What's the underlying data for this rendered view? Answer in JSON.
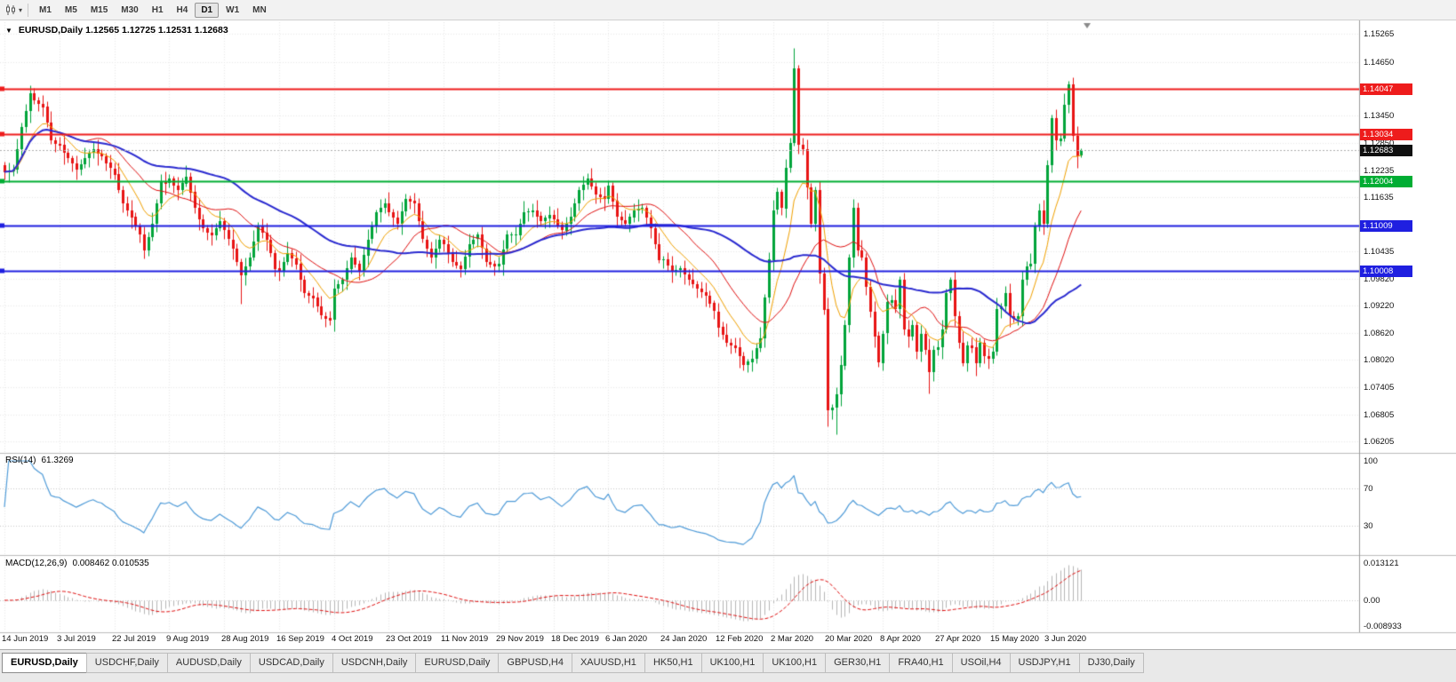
{
  "toolbar": {
    "periods": [
      "M1",
      "M5",
      "M15",
      "M30",
      "H1",
      "H4",
      "D1",
      "W1",
      "MN"
    ],
    "active_period": "D1"
  },
  "chart": {
    "title_arrow": "▼",
    "symbol_title": "EURUSD,Daily",
    "ohlc_text": "1.12565 1.12725 1.12531 1.12683"
  },
  "rsi_panel": {
    "label": "RSI(14)",
    "value": "61.3269"
  },
  "macd_panel": {
    "label": "MACD(12,26,9)",
    "values": "0.008462 0.010535"
  },
  "tabs": {
    "active_index": 0,
    "items": [
      "EURUSD,Daily",
      "USDCHF,Daily",
      "AUDUSD,Daily",
      "USDCAD,Daily",
      "USDCNH,Daily",
      "EURUSD,Daily",
      "GBPUSD,H4",
      "XAUUSD,H1",
      "HK50,H1",
      "UK100,H1",
      "UK100,H1",
      "GER30,H1",
      "FRA40,H1",
      "USOil,H4",
      "USDJPY,H1",
      "DJ30,Daily"
    ]
  },
  "chart_data": {
    "type": "candlestick",
    "symbol": "EURUSD",
    "timeframe": "Daily",
    "ohlc_current": {
      "open": 1.12565,
      "high": 1.12725,
      "low": 1.12531,
      "close": 1.12683
    },
    "first_open": 1.1235,
    "closes": [
      1.122,
      1.1222,
      1.1225,
      1.127,
      1.132,
      1.1355,
      1.1395,
      1.138,
      1.1372,
      1.1365,
      1.133,
      1.129,
      1.1283,
      1.128,
      1.1262,
      1.125,
      1.1238,
      1.1225,
      1.1237,
      1.125,
      1.1262,
      1.127,
      1.126,
      1.1255,
      1.124,
      1.1228,
      1.1215,
      1.118,
      1.115,
      1.1135,
      1.112,
      1.11,
      1.108,
      1.1045,
      1.1075,
      1.1105,
      1.115,
      1.12,
      1.1195,
      1.1205,
      1.119,
      1.118,
      1.1195,
      1.121,
      1.1175,
      1.114,
      1.1115,
      1.1095,
      1.1085,
      1.108,
      1.1095,
      1.111,
      1.109,
      1.107,
      1.105,
      1.102,
      1.099,
      1.101,
      1.103,
      1.1065,
      1.11,
      1.1085,
      1.107,
      1.104,
      1.1005,
      1.1,
      1.102,
      1.104,
      1.1028,
      1.1015,
      1.098,
      1.095,
      1.0945,
      1.094,
      1.092,
      1.09,
      1.0895,
      1.089,
      1.096,
      1.097,
      1.098,
      1.1005,
      1.103,
      1.1015,
      1.1,
      1.1035,
      1.107,
      1.11,
      1.113,
      1.114,
      1.115,
      1.113,
      1.1118,
      1.1105,
      1.1132,
      1.116,
      1.1155,
      1.115,
      1.111,
      1.107,
      1.105,
      1.103,
      1.105,
      1.107,
      1.106,
      1.104,
      1.102,
      1.1012,
      1.1005,
      1.1032,
      1.106,
      1.107,
      1.108,
      1.105,
      1.102,
      1.1015,
      1.101,
      1.1015,
      1.1048,
      1.108,
      1.108,
      1.108,
      1.1105,
      1.113,
      1.1132,
      1.1135,
      1.1122,
      1.111,
      1.1118,
      1.1125,
      1.1115,
      1.1102,
      1.109,
      1.1105,
      1.112,
      1.115,
      1.118,
      1.1192,
      1.1205,
      1.1188,
      1.117,
      1.1165,
      1.116,
      1.119,
      1.1155,
      1.112,
      1.1112,
      1.1105,
      1.112,
      1.1135,
      1.1138,
      1.114,
      1.1118,
      1.1095,
      1.106,
      1.1025,
      1.1025,
      1.1012,
      1.1,
      1.1002,
      1.1005,
      1.0992,
      1.098,
      1.097,
      1.096,
      1.0952,
      1.0945,
      1.0928,
      1.091,
      1.0875,
      1.0858,
      1.084,
      1.0835,
      1.083,
      1.081,
      1.079,
      1.0798,
      1.0805,
      1.0828,
      1.085,
      1.094,
      1.1025,
      1.1135,
      1.1175,
      1.114,
      1.123,
      1.1285,
      1.145,
      1.128,
      1.127,
      1.1185,
      1.1105,
      1.118,
      1.0995,
      1.0915,
      1.069,
      1.0695,
      1.0725,
      1.079,
      1.088,
      1.103,
      1.114,
      1.1045,
      1.103,
      1.0965,
      1.091,
      1.0855,
      1.0795,
      1.086,
      1.093,
      1.0935,
      1.0915,
      1.098,
      1.087,
      1.0855,
      1.088,
      1.082,
      1.086,
      1.0825,
      1.0775,
      1.0825,
      1.083,
      1.087,
      1.095,
      1.098,
      1.09,
      1.084,
      1.0795,
      1.0835,
      1.083,
      1.0795,
      1.084,
      1.081,
      1.0805,
      1.082,
      1.0915,
      1.092,
      1.095,
      1.09,
      1.0895,
      1.09,
      1.098,
      1.101,
      1.1015,
      1.11,
      1.1135,
      1.1105,
      1.1235,
      1.134,
      1.129,
      1.1295,
      1.137,
      1.1415,
      1.13,
      1.1255,
      1.12683
    ],
    "wick_cycle": [
      0.0007,
      0.0019,
      0.0012,
      0.0025,
      0.0009,
      0.0016,
      0.0022,
      0.0011
    ],
    "special_points": {
      "6": {
        "h": 1.1412
      },
      "33": {
        "l": 1.1027
      },
      "56": {
        "l": 1.0926
      },
      "77": {
        "l": 1.0879
      },
      "175": {
        "l": 1.0778
      },
      "187": {
        "h": 1.1495
      },
      "195": {
        "l": 1.0655
      },
      "197": {
        "l": 1.0636
      },
      "219": {
        "l": 1.0727
      },
      "230": {
        "l": 1.0767
      },
      "252": {
        "h": 1.1422
      },
      "255": {
        "o": 1.12565,
        "h": 1.12725,
        "l": 1.12531
      }
    },
    "price_axis": {
      "top": 1.1553,
      "bottom": 1.0597,
      "labels": [
        {
          "text": "1.15265",
          "price": 1.15265
        },
        {
          "text": "1.14650",
          "price": 1.1465
        },
        {
          "text": "1.13450",
          "price": 1.1345
        },
        {
          "text": "1.12850",
          "price": 1.1285
        },
        {
          "text": "1.12235",
          "price": 1.12235
        },
        {
          "text": "1.11635",
          "price": 1.11635
        },
        {
          "text": "1.10435",
          "price": 1.10435
        },
        {
          "text": "1.09820",
          "price": 1.0982
        },
        {
          "text": "1.09220",
          "price": 1.0922
        },
        {
          "text": "1.08620",
          "price": 1.0862
        },
        {
          "text": "1.08020",
          "price": 1.0802
        },
        {
          "text": "1.07405",
          "price": 1.07405
        },
        {
          "text": "1.06805",
          "price": 1.06805
        },
        {
          "text": "1.06205",
          "price": 1.06205
        }
      ]
    },
    "hlines": [
      {
        "price": 1.14047,
        "label": "1.14047",
        "color": "#ee1c1c",
        "width": 2
      },
      {
        "price": 1.13034,
        "label": "1.13034",
        "color": "#ee1c1c",
        "width": 2
      },
      {
        "price": 1.12004,
        "label": "1.12004",
        "color": "#00ad33",
        "width": 2
      },
      {
        "price": 1.11009,
        "label": "1.11009",
        "color": "#1f1fe0",
        "width": 2
      },
      {
        "price": 1.10008,
        "label": "1.10008",
        "color": "#1f1fe0",
        "width": 2
      }
    ],
    "current_price": {
      "price": 1.12683,
      "label": "1.12683",
      "color": "#101010"
    },
    "moving_averages": [
      {
        "type": "ema",
        "period": 10,
        "color": "#f0a000",
        "width": 1
      },
      {
        "type": "sma",
        "period": 20,
        "color": "#e01010",
        "width": 1
      },
      {
        "type": "sma",
        "period": 50,
        "color": "#2a2ad0",
        "width": 2
      }
    ],
    "rsi": {
      "period": 14,
      "color": "#4f9bd8",
      "levels": [
        70,
        30
      ],
      "range": [
        0,
        100
      ],
      "axis_labels": [
        {
          "text": "100",
          "value": 100
        },
        {
          "text": "70",
          "value": 70
        },
        {
          "text": "30",
          "value": 30
        }
      ]
    },
    "macd": {
      "fast": 12,
      "slow": 26,
      "signal_period": 9,
      "hist_color": "#b6b6b6",
      "signal_color": "#e01010",
      "axis_labels": [
        {
          "text": "0.013121",
          "value": 0.013121
        },
        {
          "text": "0.00",
          "value": 0
        },
        {
          "text": "-0.008933",
          "value": -0.008933
        }
      ]
    },
    "x_labels": [
      {
        "text": "14 Jun 2019",
        "index": 0
      },
      {
        "text": "3 Jul 2019",
        "index": 13
      },
      {
        "text": "22 Jul 2019",
        "index": 26
      },
      {
        "text": "9 Aug 2019",
        "index": 39
      },
      {
        "text": "28 Aug 2019",
        "index": 52
      },
      {
        "text": "16 Sep 2019",
        "index": 65
      },
      {
        "text": "4 Oct 2019",
        "index": 78
      },
      {
        "text": "23 Oct 2019",
        "index": 91
      },
      {
        "text": "11 Nov 2019",
        "index": 104
      },
      {
        "text": "29 Nov 2019",
        "index": 117
      },
      {
        "text": "18 Dec 2019",
        "index": 130
      },
      {
        "text": "6 Jan 2020",
        "index": 143
      },
      {
        "text": "24 Jan 2020",
        "index": 156
      },
      {
        "text": "12 Feb 2020",
        "index": 169
      },
      {
        "text": "2 Mar 2020",
        "index": 182
      },
      {
        "text": "20 Mar 2020",
        "index": 195
      },
      {
        "text": "8 Apr 2020",
        "index": 208
      },
      {
        "text": "27 Apr 2020",
        "index": 221
      },
      {
        "text": "15 May 2020",
        "index": 234
      },
      {
        "text": "3 Jun 2020",
        "index": 247
      }
    ],
    "colors": {
      "up": "#00a43a",
      "down": "#e81414",
      "grid": "#e8e8e8",
      "panel_grid": "#c9c9c9",
      "axis_line": "#9a9a9a",
      "separator": "#bdbdbd",
      "background": "#ffffff",
      "current_line": "#b0b0b0",
      "shift_marker": "#8a8a8a"
    }
  }
}
